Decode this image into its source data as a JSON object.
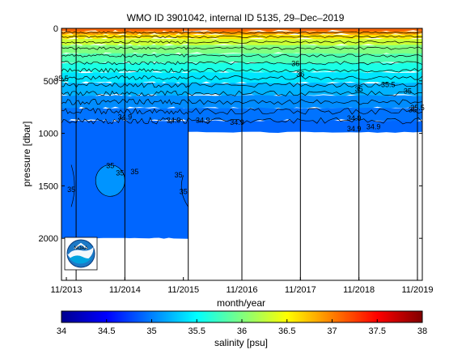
{
  "chart_data": {
    "type": "heatmap",
    "title": "WMO ID 3901042, internal ID 5135, 29–Dec–2019",
    "xlabel": "month/year",
    "ylabel": "pressure [dbar]",
    "x_ticks": [
      "11/2013",
      "11/2014",
      "11/2015",
      "11/2016",
      "11/2017",
      "11/2018",
      "11/2019"
    ],
    "x_range": [
      "2013-10",
      "2019-12"
    ],
    "y_ticks": [
      0,
      500,
      1000,
      1500,
      2000
    ],
    "y_range": [
      0,
      2400
    ],
    "y_reversed": true,
    "profile_depth_segments": [
      {
        "from": "2013-10",
        "to": "2015-12",
        "max_pressure": 2000
      },
      {
        "from": "2015-12",
        "to": "2019-12",
        "max_pressure": 990
      }
    ],
    "profile_months": [
      "2014-01",
      "2014-11",
      "2015-12",
      "2016-11",
      "2017-11",
      "2018-11",
      "2019-11"
    ],
    "salinity_bands": [
      {
        "from": 0,
        "to": 30,
        "value": 37.1
      },
      {
        "from": 30,
        "to": 60,
        "value": 36.9
      },
      {
        "from": 60,
        "to": 100,
        "value": 36.6
      },
      {
        "from": 100,
        "to": 160,
        "value": 36.3
      },
      {
        "from": 160,
        "to": 240,
        "value": 36.0
      },
      {
        "from": 240,
        "to": 330,
        "value": 35.8
      },
      {
        "from": 330,
        "to": 420,
        "value": 35.6
      },
      {
        "from": 420,
        "to": 520,
        "value": 35.4
      },
      {
        "from": 520,
        "to": 640,
        "value": 35.2
      },
      {
        "from": 640,
        "to": 760,
        "value": 35.05
      },
      {
        "from": 760,
        "to": 880,
        "value": 34.95
      },
      {
        "from": 880,
        "to": 2000,
        "value": 34.9
      }
    ],
    "deep_features": [
      {
        "x_from": "2014-05",
        "x_to": "2014-11",
        "p_from": 1300,
        "p_to": 1600,
        "value": 35.1
      }
    ],
    "contour_levels": [
      34.9,
      35,
      35.5,
      36,
      36.5,
      37
    ],
    "contour_labels": [
      {
        "text": "34.9",
        "date": "2014-11",
        "p": 870
      },
      {
        "text": "34.9",
        "date": "2015-09",
        "p": 900
      },
      {
        "text": "34.9",
        "date": "2016-03",
        "p": 900
      },
      {
        "text": "34.9",
        "date": "2016-10",
        "p": 920
      },
      {
        "text": "34.9",
        "date": "2019-02",
        "p": 960
      },
      {
        "text": "34.9",
        "date": "2018-10",
        "p": 880
      },
      {
        "text": "34.9",
        "date": "2018-10",
        "p": 980
      },
      {
        "text": "35",
        "date": "2014-08",
        "p": 1330
      },
      {
        "text": "35",
        "date": "2014-10",
        "p": 1400
      },
      {
        "text": "35",
        "date": "2015-01",
        "p": 1390
      },
      {
        "text": "35",
        "date": "2015-10",
        "p": 1420
      },
      {
        "text": "35",
        "date": "2015-11",
        "p": 1580
      },
      {
        "text": "35",
        "date": "2013-12",
        "p": 1560
      },
      {
        "text": "35",
        "date": "2019-09",
        "p": 620
      },
      {
        "text": "35",
        "date": "2019-10",
        "p": 800
      },
      {
        "text": "35",
        "date": "2018-11",
        "p": 600
      },
      {
        "text": "35.5",
        "date": "2019-05",
        "p": 560
      },
      {
        "text": "35.5",
        "date": "2019-11",
        "p": 780
      },
      {
        "text": "35.5",
        "date": "2013-10",
        "p": 500
      },
      {
        "text": "36",
        "date": "2017-10",
        "p": 360
      },
      {
        "text": "36",
        "date": "2017-11",
        "p": 460
      }
    ],
    "colorbar": {
      "label": "salinity [psu]",
      "range": [
        34,
        38
      ],
      "ticks": [
        "34",
        "34.5",
        "35",
        "35.5",
        "36",
        "36.5",
        "37",
        "37.5",
        "38"
      ]
    },
    "logo": {
      "text": "NOAA"
    }
  }
}
